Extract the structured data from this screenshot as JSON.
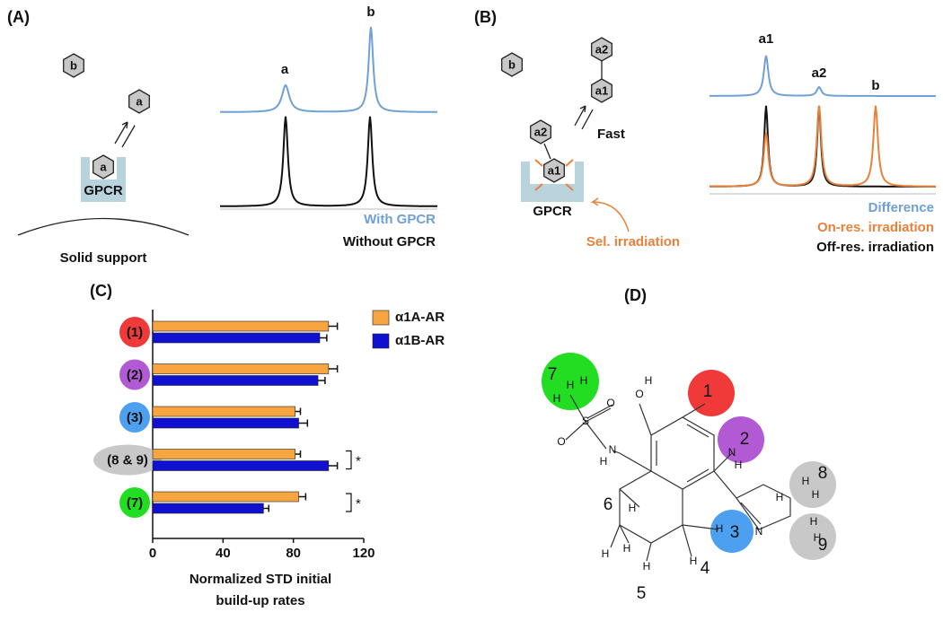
{
  "panel_a": {
    "label": "(A)",
    "free_ligands": [
      "b",
      "a"
    ],
    "bound_ligand": "a",
    "receptor": "GPCR",
    "support": "Solid support",
    "peaks": [
      "a",
      "b"
    ],
    "legend": [
      "With GPCR",
      "Without GPCR"
    ]
  },
  "panel_b": {
    "label": "(B)",
    "free_ligands": [
      "b",
      "a2",
      "a1"
    ],
    "bound_ligand": [
      "a2",
      "a1"
    ],
    "exchange": "Fast",
    "receptor": "GPCR",
    "irradiation": "Sel. irradiation",
    "peaks": [
      "a1",
      "a2",
      "b"
    ],
    "legend": [
      "Difference",
      "On-res. irradiation",
      "Off-res. irradiation"
    ]
  },
  "panel_d": {
    "label": "(D)",
    "atoms": [
      "O",
      "H",
      "S",
      "O",
      "O",
      "N",
      "H",
      "N",
      "H",
      "N",
      "H",
      "H",
      "H",
      "H",
      "H",
      "H",
      "H",
      "H",
      "H",
      "H",
      "H",
      "H",
      "H",
      "H"
    ],
    "positions": [
      "1",
      "2",
      "3",
      "4",
      "5",
      "6",
      "7",
      "8",
      "9"
    ]
  },
  "chart_data": {
    "type": "bar",
    "label": "(C)",
    "orientation": "horizontal",
    "categories": [
      "(1)",
      "(2)",
      "(3)",
      "(8 & 9)",
      "(7)"
    ],
    "category_colors": [
      "#f03a3a",
      "#b15ad3",
      "#4d9ff0",
      "#c8c8c8",
      "#22dd22"
    ],
    "series": [
      {
        "name": "α1A-AR",
        "color": "#f7a541",
        "values": [
          100,
          100,
          81,
          81,
          83
        ],
        "errors": [
          5,
          5,
          3,
          3,
          4
        ]
      },
      {
        "name": "α1B-AR",
        "color": "#1010d0",
        "values": [
          95,
          94,
          83,
          100,
          63
        ],
        "errors": [
          4,
          4,
          5,
          5,
          3
        ]
      }
    ],
    "xlim": [
      0,
      120
    ],
    "xticks": [
      0,
      40,
      80,
      120
    ],
    "xlabel": [
      "Normalized STD initial",
      "build-up rates"
    ],
    "annotations": [
      {
        "category": 3,
        "text": "*"
      },
      {
        "category": 4,
        "text": "*"
      }
    ]
  }
}
